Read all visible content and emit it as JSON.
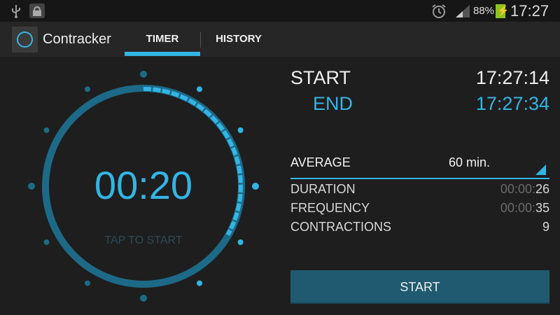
{
  "status_bar": {
    "icons": [
      "usb-icon",
      "lock-icon",
      "alarm-icon",
      "signal-icon",
      "battery-charging-icon"
    ],
    "battery": "88%",
    "time": "17:27"
  },
  "app": {
    "title": "Contracker",
    "tabs": [
      {
        "label": "TIMER",
        "active": true
      },
      {
        "label": "HISTORY",
        "active": false
      }
    ]
  },
  "timer": {
    "display": "00:20",
    "hint": "TAP TO START",
    "progress_seconds": 20,
    "cycle_seconds": 60
  },
  "times": {
    "start_label": "START",
    "start_value": "17:27:14",
    "end_label": "END",
    "end_value": "17:27:34"
  },
  "average": {
    "label": "AVERAGE",
    "selected": "60 min."
  },
  "stats": [
    {
      "label": "DURATION",
      "dim": "00:00:",
      "value": "26"
    },
    {
      "label": "FREQUENCY",
      "dim": "00:00:",
      "value": "35"
    },
    {
      "label": "CONTRACTIONS",
      "dim": "",
      "value": "9"
    }
  ],
  "start_button": "START",
  "colors": {
    "accent": "#33b5e5",
    "ring": "#1d6a88",
    "button": "#1f5a70",
    "battery": "#8ec21f"
  }
}
